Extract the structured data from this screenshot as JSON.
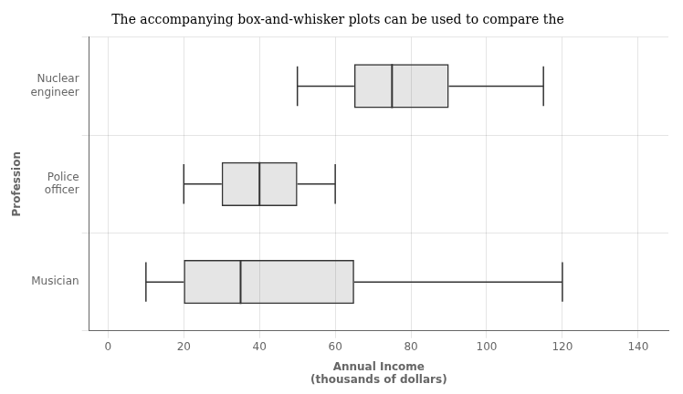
{
  "chart_data": {
    "type": "boxplot",
    "title": "The accompanying box-and-whisker plots can be used to compare the",
    "xlabel": "Annual Income\n(thousands of dollars)",
    "ylabel": "Profession",
    "categories": [
      "Nuclear\nengineer",
      "Police\nofficer",
      "Musician"
    ],
    "boxes": [
      {
        "whisker_min": 50,
        "q1": 65,
        "median": 75,
        "q3": 90,
        "whisker_max": 115
      },
      {
        "whisker_min": 20,
        "q1": 30,
        "median": 40,
        "q3": 50,
        "whisker_max": 60
      },
      {
        "whisker_min": 10,
        "q1": 20,
        "median": 35,
        "q3": 65,
        "whisker_max": 120
      }
    ],
    "orientation": "horizontal",
    "xlim": [
      -5,
      148
    ],
    "xticks": [
      0,
      20,
      40,
      60,
      80,
      100,
      120,
      140
    ],
    "grid": true
  }
}
